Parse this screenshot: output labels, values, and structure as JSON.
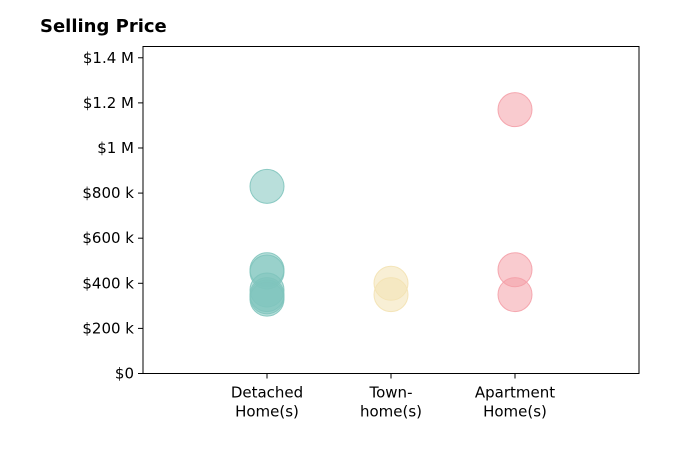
{
  "chart_data": {
    "type": "scatter",
    "title": "Selling Price",
    "xlabel": "",
    "ylabel": "",
    "categories": [
      "Detached Home(s)",
      "Town-home(s)",
      "Apartment Home(s)"
    ],
    "category_lines": [
      [
        "Detached",
        "Home(s)"
      ],
      [
        "Town-",
        "home(s)"
      ],
      [
        "Apartment",
        "Home(s)"
      ]
    ],
    "ylim": [
      0,
      1450000
    ],
    "yticks": [
      0,
      200000,
      400000,
      600000,
      800000,
      1000000,
      1200000,
      1400000
    ],
    "ytick_labels": [
      "$0",
      "$200 k",
      "$400 k",
      "$600 k",
      "$800 k",
      "$1 M",
      "$1.2 M",
      "$1.4 M"
    ],
    "grid": false,
    "series": [
      {
        "category": "Detached Home(s)",
        "color": "#7fc4bd",
        "values": [
          830000,
          460000,
          450000,
          370000,
          350000,
          340000,
          330000
        ]
      },
      {
        "category": "Town-home(s)",
        "color": "#f3e2b3",
        "values": [
          400000,
          350000
        ]
      },
      {
        "category": "Apartment Home(s)",
        "color": "#f4a0a8",
        "values": [
          1170000,
          460000,
          350000
        ]
      }
    ]
  }
}
